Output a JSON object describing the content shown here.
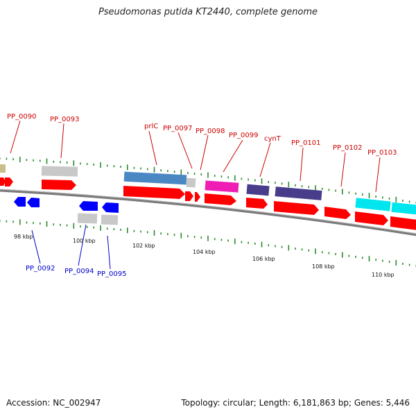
{
  "title": "Pseudomonas putida KT2440, complete genome",
  "footer": {
    "accession": "Accession: NC_002947",
    "summary": "Topology: circular; Length: 6,181,863 bp; Genes: 5,446"
  },
  "colors": {
    "cds": "#ff0000",
    "cds_reverse": "#0000ff",
    "backbone": "#808080",
    "tick": "#2a8a2a",
    "gray_gene": "#c8c8c8",
    "olive_gene": "#c8bf8a",
    "steelblue_gene": "#4a88c4",
    "magenta_gene": "#ee1eb4",
    "navy_gene": "#473d8b",
    "cyan_gene": "#00e5ee",
    "forward_label": "#cc0000",
    "reverse_label": "#0000cc"
  },
  "kbp_labels": [
    "98 kbp",
    "100 kbp",
    "102 kbp",
    "104 kbp",
    "106 kbp",
    "108 kbp",
    "110 kbp"
  ],
  "forward_labels": [
    "PP_0090",
    "PP_0093",
    "prlC",
    "PP_0097",
    "PP_0098",
    "PP_0099",
    "cynT",
    "PP_0101",
    "PP_0102",
    "PP_0103"
  ],
  "reverse_labels": [
    "PP_0092",
    "PP_0094",
    "PP_0095"
  ]
}
